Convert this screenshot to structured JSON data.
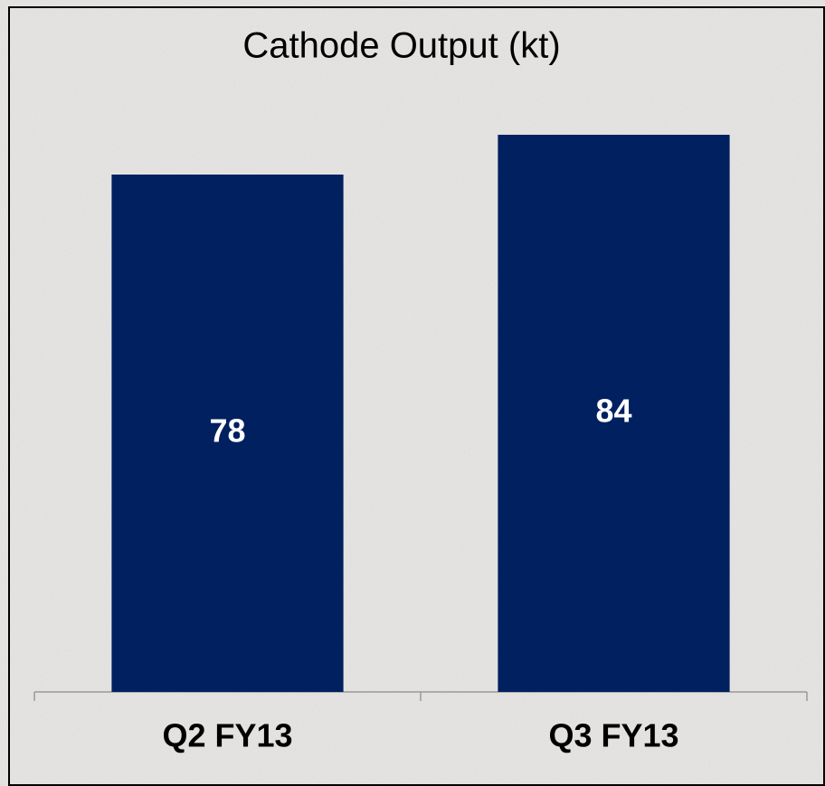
{
  "chart_data": {
    "type": "bar",
    "title": "Cathode Output (kt)",
    "categories": [
      "Q2 FY13",
      "Q3 FY13"
    ],
    "values": [
      78,
      84
    ],
    "color": "#002060"
  }
}
